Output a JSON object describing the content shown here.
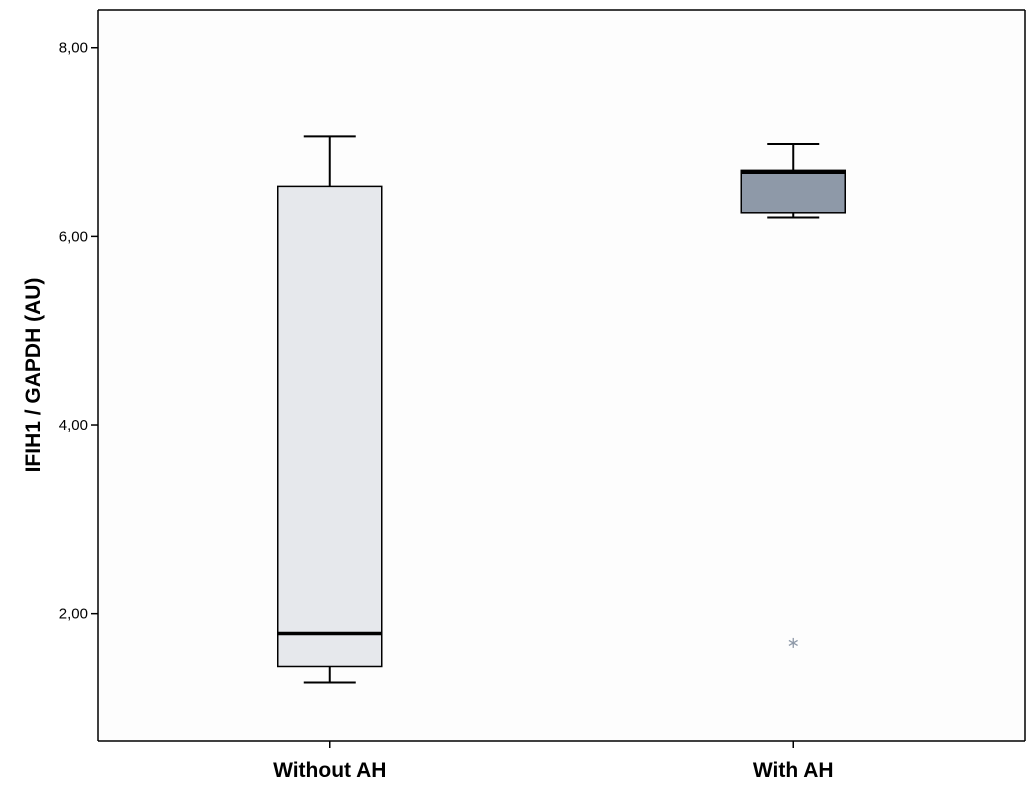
{
  "chart_data": {
    "type": "boxplot",
    "ylabel": "IFIH1 / GAPDH (AU)",
    "xlabel": "",
    "ylim": [
      0.65,
      8.4
    ],
    "yticks": [
      2,
      4,
      6,
      8
    ],
    "ytick_labels": [
      "2,00",
      "4,00",
      "6,00",
      "8,00"
    ],
    "grid": false,
    "categories": [
      "Without AH",
      "With AH"
    ],
    "boxes": [
      {
        "name": "Without AH",
        "whisker_low": 1.27,
        "q1": 1.44,
        "median": 1.79,
        "q3": 6.53,
        "whisker_high": 7.06,
        "outliers": [],
        "fill": "#e6e8ec"
      },
      {
        "name": "With AH",
        "whisker_low": 6.2,
        "q1": 6.25,
        "median": 6.68,
        "q3": 6.7,
        "whisker_high": 6.98,
        "outliers": [
          1.69
        ],
        "fill": "#8e99a8"
      }
    ],
    "colors": {
      "background": "#fdfdfd",
      "axis": "#000000",
      "outlier": "#8e99a8"
    }
  }
}
